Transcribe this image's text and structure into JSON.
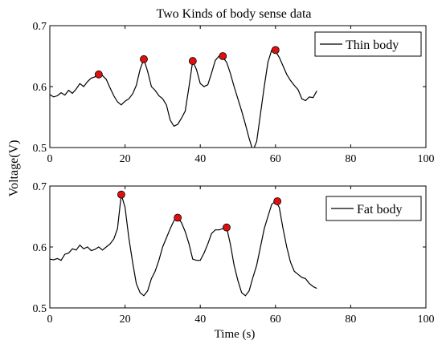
{
  "figure": {
    "title": "Two Kinds of body sense data",
    "ylabel": "Voltage(V)",
    "xlabel": "Time (s)"
  },
  "chart_data": [
    {
      "type": "line",
      "title": "Two Kinds of body sense data",
      "xlabel": "",
      "ylabel": "Voltage(V)",
      "xlim": [
        0,
        100
      ],
      "ylim": [
        0.5,
        0.7
      ],
      "xticks": [
        "0",
        "20",
        "40",
        "60",
        "80",
        "100"
      ],
      "yticks": [
        "0.5",
        "0.6",
        "0.7"
      ],
      "legend": "top-right",
      "series": [
        {
          "name": "Thin body",
          "color": "#000000",
          "x": [
            0,
            1,
            2,
            3,
            4,
            5,
            6,
            7,
            8,
            9,
            10,
            11,
            12,
            13,
            14,
            15,
            16,
            17,
            18,
            19,
            20,
            21,
            22,
            23,
            24,
            25,
            26,
            27,
            28,
            29,
            30,
            31,
            32,
            33,
            34,
            35,
            36,
            37,
            38,
            39,
            40,
            41,
            42,
            43,
            44,
            45,
            46,
            47,
            48,
            49,
            50,
            51,
            52,
            53,
            54,
            55,
            56,
            57,
            58,
            59,
            60,
            61,
            62,
            63,
            64,
            65,
            66,
            67,
            68,
            69,
            70,
            71
          ],
          "y": [
            0.587,
            0.583,
            0.585,
            0.59,
            0.586,
            0.594,
            0.589,
            0.596,
            0.605,
            0.6,
            0.608,
            0.614,
            0.616,
            0.62,
            0.618,
            0.612,
            0.598,
            0.585,
            0.575,
            0.57,
            0.576,
            0.58,
            0.588,
            0.602,
            0.628,
            0.645,
            0.625,
            0.6,
            0.594,
            0.585,
            0.58,
            0.57,
            0.545,
            0.535,
            0.538,
            0.548,
            0.56,
            0.6,
            0.642,
            0.628,
            0.605,
            0.6,
            0.603,
            0.622,
            0.643,
            0.65,
            0.648,
            0.64,
            0.622,
            0.6,
            0.58,
            0.56,
            0.538,
            0.515,
            0.495,
            0.51,
            0.555,
            0.6,
            0.64,
            0.66,
            0.658,
            0.648,
            0.634,
            0.62,
            0.61,
            0.602,
            0.595,
            0.58,
            0.577,
            0.583,
            0.582,
            0.593
          ]
        }
      ],
      "markers": [
        {
          "x": 13,
          "y": 0.62
        },
        {
          "x": 25,
          "y": 0.645
        },
        {
          "x": 38,
          "y": 0.642
        },
        {
          "x": 46,
          "y": 0.65
        },
        {
          "x": 60,
          "y": 0.66
        }
      ],
      "marker_color": "#e01010"
    },
    {
      "type": "line",
      "title": "",
      "xlabel": "Time (s)",
      "ylabel": "Voltage(V)",
      "xlim": [
        0,
        100
      ],
      "ylim": [
        0.5,
        0.7
      ],
      "xticks": [
        "0",
        "20",
        "40",
        "60",
        "80",
        "100"
      ],
      "yticks": [
        "0.5",
        "0.6",
        "0.7"
      ],
      "legend": "top-right",
      "series": [
        {
          "name": "Fat body",
          "color": "#000000",
          "x": [
            0,
            1,
            2,
            3,
            4,
            5,
            6,
            7,
            8,
            9,
            10,
            11,
            12,
            13,
            14,
            15,
            16,
            17,
            18,
            19,
            20,
            21,
            22,
            23,
            24,
            25,
            26,
            27,
            28,
            29,
            30,
            31,
            32,
            33,
            34,
            35,
            36,
            37,
            38,
            39,
            40,
            41,
            42,
            43,
            44,
            45,
            46,
            47,
            48,
            49,
            50,
            51,
            52,
            53,
            54,
            55,
            56,
            57,
            58,
            59,
            60,
            61,
            62,
            63,
            64,
            65,
            66,
            67,
            68,
            69,
            70,
            71
          ],
          "y": [
            0.58,
            0.579,
            0.581,
            0.578,
            0.588,
            0.59,
            0.597,
            0.595,
            0.603,
            0.597,
            0.6,
            0.594,
            0.596,
            0.6,
            0.595,
            0.6,
            0.605,
            0.613,
            0.63,
            0.686,
            0.665,
            0.615,
            0.575,
            0.54,
            0.525,
            0.52,
            0.528,
            0.548,
            0.56,
            0.578,
            0.6,
            0.615,
            0.63,
            0.643,
            0.648,
            0.64,
            0.625,
            0.605,
            0.58,
            0.578,
            0.578,
            0.59,
            0.605,
            0.622,
            0.628,
            0.628,
            0.63,
            0.632,
            0.605,
            0.57,
            0.545,
            0.525,
            0.52,
            0.528,
            0.55,
            0.57,
            0.6,
            0.63,
            0.65,
            0.67,
            0.675,
            0.665,
            0.63,
            0.6,
            0.575,
            0.56,
            0.555,
            0.55,
            0.548,
            0.54,
            0.535,
            0.532
          ]
        }
      ],
      "markers": [
        {
          "x": 19,
          "y": 0.686
        },
        {
          "x": 34,
          "y": 0.648
        },
        {
          "x": 47,
          "y": 0.632
        },
        {
          "x": 60.5,
          "y": 0.675
        }
      ],
      "marker_color": "#e01010"
    }
  ]
}
